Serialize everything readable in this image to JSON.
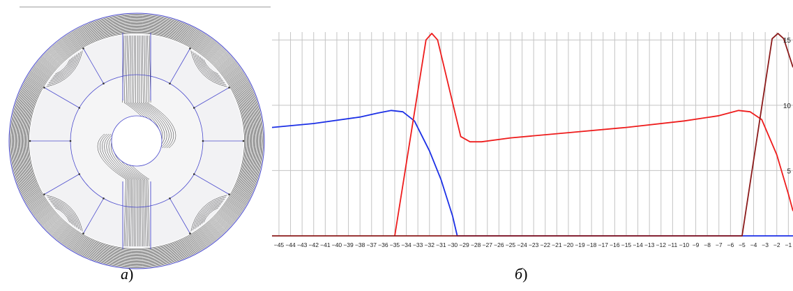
{
  "captions": {
    "left": "а",
    "right": "б",
    "paren": ")"
  },
  "colors": {
    "background": "#ffffff",
    "field_lines": "#1a1a1a",
    "mesh_blue": "#4a4acd",
    "plot_grid": "#c4c4c4",
    "series_blue": "#1b2fe6",
    "series_red": "#ee1c1c",
    "series_dark_red": "#8b1a1a"
  },
  "chart_data": {
    "type": "line",
    "x_ticks": [
      -45,
      -44,
      -43,
      -42,
      -41,
      -40,
      -39,
      -38,
      -37,
      -36,
      -35,
      -34,
      -33,
      -32,
      -31,
      -30,
      -29,
      -28,
      -27,
      -26,
      -25,
      -24,
      -23,
      -22,
      -21,
      -20,
      -19,
      -18,
      -17,
      -16,
      -15,
      -14,
      -13,
      -12,
      -11,
      -10,
      -9,
      -8,
      -7,
      -6,
      -5,
      -4,
      -3,
      -2,
      -1
    ],
    "y_ticks": [
      5,
      10,
      15
    ],
    "xlim": [
      -45.6,
      -0.6
    ],
    "ylim": [
      0,
      15.6
    ],
    "grid": true,
    "series": [
      {
        "color": "#1b2fe6",
        "points": [
          [
            -45.6,
            8.3
          ],
          [
            -42,
            8.6
          ],
          [
            -38,
            9.1
          ],
          [
            -36.5,
            9.4
          ],
          [
            -35.3,
            9.6
          ],
          [
            -34.3,
            9.5
          ],
          [
            -33.3,
            8.8
          ],
          [
            -32,
            6.5
          ],
          [
            -31,
            4.3
          ],
          [
            -30,
            1.5
          ],
          [
            -29.6,
            0
          ],
          [
            -0.6,
            0
          ]
        ]
      },
      {
        "color": "#ee1c1c",
        "points": [
          [
            -35,
            0
          ],
          [
            -32.3,
            15.0
          ],
          [
            -31.8,
            15.5
          ],
          [
            -31.3,
            15.0
          ],
          [
            -29.3,
            7.6
          ],
          [
            -28.5,
            7.2
          ],
          [
            -27.5,
            7.2
          ],
          [
            -25,
            7.5
          ],
          [
            -20,
            7.9
          ],
          [
            -15,
            8.3
          ],
          [
            -10,
            8.8
          ],
          [
            -7,
            9.2
          ],
          [
            -5.3,
            9.6
          ],
          [
            -4.3,
            9.5
          ],
          [
            -3.3,
            8.9
          ],
          [
            -2,
            6.2
          ],
          [
            -1,
            3.2
          ],
          [
            -0.6,
            1.9
          ]
        ]
      },
      {
        "color": "#8b1a1a",
        "points": [
          [
            -45.6,
            0
          ],
          [
            -5,
            0
          ],
          [
            -2.4,
            15.1
          ],
          [
            -1.9,
            15.5
          ],
          [
            -1.4,
            15.1
          ],
          [
            -0.6,
            12.9
          ]
        ]
      }
    ]
  }
}
